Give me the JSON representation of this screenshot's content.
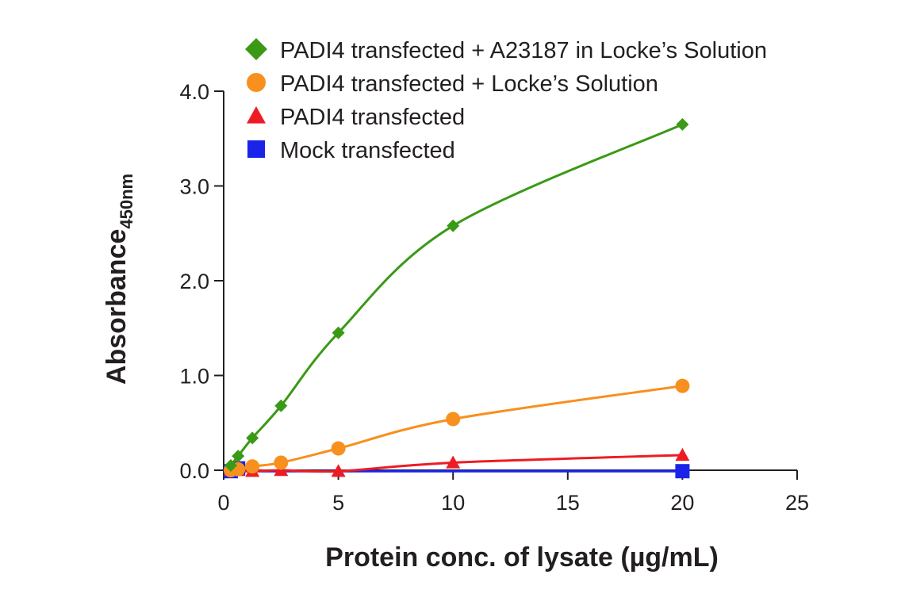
{
  "chart_data": {
    "type": "line",
    "xlabel": "Protein conc. of lysate (µg/mL)",
    "ylabel_main": "Absorbance",
    "ylabel_sub": "450nm",
    "xlim": [
      0,
      25
    ],
    "ylim": [
      0,
      4
    ],
    "xticks": [
      0,
      5,
      10,
      15,
      20,
      25
    ],
    "xtick_labels": [
      "0",
      "5",
      "10",
      "15",
      "20",
      "25"
    ],
    "yticks": [
      0,
      1,
      2,
      3,
      4
    ],
    "ytick_labels": [
      "0.0",
      "1.0",
      "2.0",
      "3.0",
      "4.0"
    ],
    "grid": false,
    "legend_position": "top",
    "series": [
      {
        "name": "PADI4 transfected + A23187 in Locke’s Solution",
        "color": "#3a9a16",
        "marker": "diamond",
        "x": [
          0.31,
          0.63,
          1.25,
          2.5,
          5,
          10,
          20
        ],
        "y": [
          0.05,
          0.15,
          0.34,
          0.68,
          1.45,
          2.58,
          3.65
        ]
      },
      {
        "name": "PADI4 transfected + Locke’s Solution",
        "color": "#f7901e",
        "marker": "circle",
        "x": [
          0.31,
          0.63,
          1.25,
          2.5,
          5,
          10,
          20
        ],
        "y": [
          0.0,
          0.01,
          0.04,
          0.08,
          0.23,
          0.54,
          0.89
        ]
      },
      {
        "name": "PADI4 transfected",
        "color": "#ed1c24",
        "marker": "triangle",
        "x": [
          0.31,
          0.63,
          1.25,
          2.5,
          5,
          10,
          20
        ],
        "y": [
          0.0,
          0.0,
          -0.01,
          0.0,
          -0.01,
          0.08,
          0.16
        ]
      },
      {
        "name": "Mock transfected",
        "color": "#1a24e8",
        "marker": "square",
        "x": [
          0.31,
          0.63,
          20
        ],
        "y": [
          -0.01,
          0.02,
          -0.01
        ]
      }
    ]
  }
}
